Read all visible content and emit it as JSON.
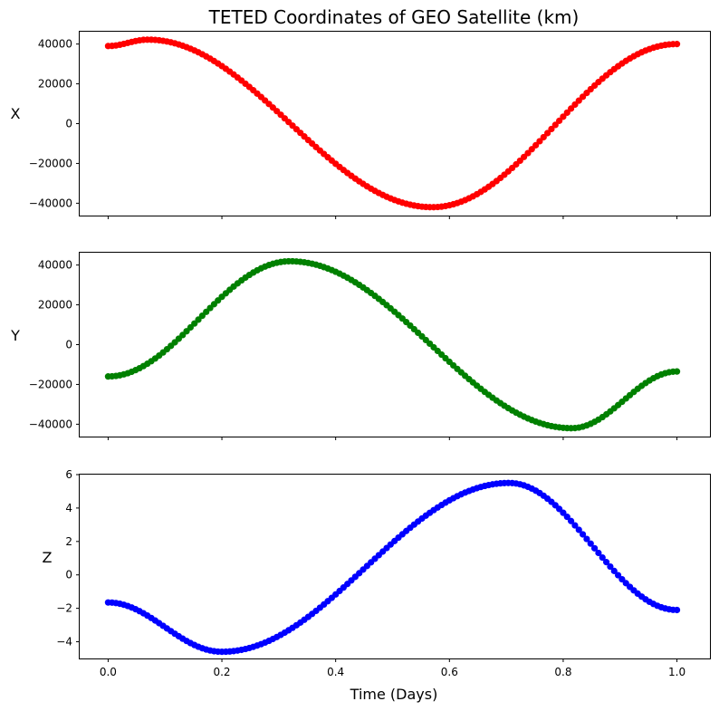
{
  "chart_data": {
    "type": "scatter",
    "title": "TETED Coordinates of GEO Satellite (km)",
    "xlabel": "Time (Days)",
    "x_range": [
      0.0,
      1.0
    ],
    "n_points": 146,
    "xlim": [
      -0.05,
      1.058
    ],
    "xticks": [
      "0.0",
      "0.2",
      "0.4",
      "0.6",
      "0.8",
      "1.0"
    ],
    "grid": false,
    "panels": [
      {
        "ylabel": "X",
        "color": "#ff0000",
        "ylim": [
          -46200,
          46200
        ],
        "yticks": [
          40000,
          20000,
          0,
          -20000,
          -40000
        ],
        "ytick_labels": [
          "40000",
          "20000",
          "0",
          "−20000",
          "−40000"
        ],
        "y_start": 39000,
        "y_end": 40000,
        "y_max": 42200,
        "x_at_max": 0.07,
        "y_min": -42000,
        "x_at_min": 0.57
      },
      {
        "ylabel": "Y",
        "color": "#008000",
        "ylim": [
          -46200,
          46200
        ],
        "yticks": [
          40000,
          20000,
          0,
          -20000,
          -40000
        ],
        "ytick_labels": [
          "40000",
          "20000",
          "0",
          "−20000",
          "−40000"
        ],
        "y_start": -16000,
        "y_end": -13500,
        "y_max": 41900,
        "x_at_max": 0.32,
        "y_min": -42000,
        "x_at_min": 0.815
      },
      {
        "ylabel": "Z",
        "color": "#0000ff",
        "ylim": [
          -5.0,
          6.0
        ],
        "yticks": [
          6,
          4,
          2,
          0,
          -2,
          -4
        ],
        "ytick_labels": [
          "6",
          "4",
          "2",
          "0",
          "−2",
          "−4"
        ],
        "y_start": -1.65,
        "y_end": -2.1,
        "y_max": 5.5,
        "x_at_max": 0.705,
        "y_min": -4.6,
        "x_at_min": 0.2
      }
    ]
  }
}
